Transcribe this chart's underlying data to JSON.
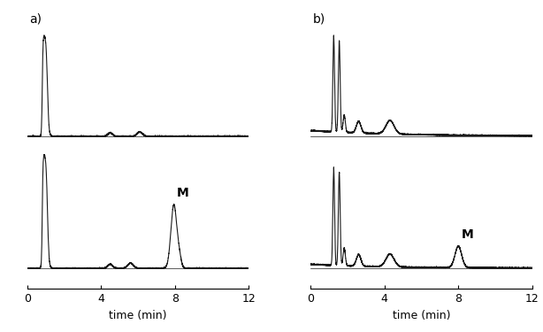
{
  "figure_bg": "#ffffff",
  "line_color": "#1a1a1a",
  "line_width": 0.8,
  "xlabel": "time (min)",
  "x_min": 0,
  "x_max": 12,
  "x_ticks": [
    0,
    4,
    8,
    12
  ],
  "x_tick_labels": [
    "0",
    "4",
    "8",
    "12"
  ],
  "label_a": "a)",
  "label_b": "b)",
  "melamine_label": "M",
  "font_size_axis": 9,
  "font_size_label": 10,
  "font_size_M": 10
}
